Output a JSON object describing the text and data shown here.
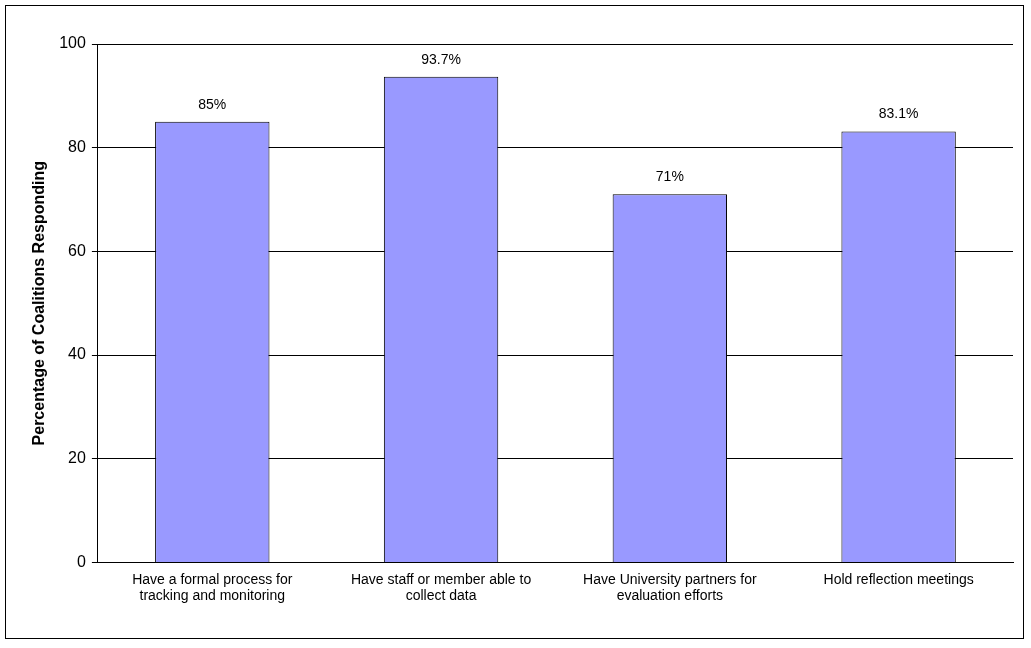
{
  "chart_data": {
    "type": "bar",
    "ylabel": "Percentage of Coalitions Responding",
    "categories": [
      "Have a formal process for tracking and monitoring",
      "Have staff or member able to collect data",
      "Have University partners for evaluation efforts",
      "Hold reflection meetings"
    ],
    "values": [
      85,
      93.7,
      71,
      83.1
    ],
    "value_labels": [
      "85%",
      "93.7%",
      "71%",
      "83.1%"
    ],
    "color": "#9999ff",
    "ylim": [
      0,
      100
    ],
    "yticks": [
      0,
      20,
      40,
      60,
      80,
      100
    ],
    "grid": "y",
    "legend": false
  }
}
